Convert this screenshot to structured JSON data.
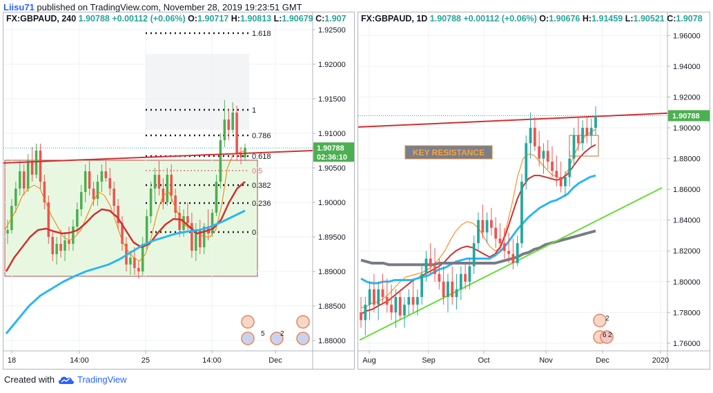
{
  "header": {
    "user": "Liisu71",
    "text": " published on TradingView.com, November 28, 2019 19:23:51 GMT"
  },
  "footer": {
    "prefix": "Created with",
    "brand": "TradingView"
  },
  "colors": {
    "candle_up": "#26a69a",
    "candle_up_bright": "#4caf50",
    "candle_down": "#ef5350",
    "ema_fast": "#f57c00",
    "ema_mid": "#d32f2f",
    "ema_slow": "#29b6f6",
    "ema_long": "#787b86",
    "resistance": "#d32f2f",
    "support": "#66dd33",
    "price_tag": "#4caf50"
  },
  "left": {
    "symbol": "FX:GBPAUD, 240",
    "last": "1.90788",
    "change": "+0.00112 (+0.06%)",
    "o_label": "O:",
    "o": "1.90717",
    "h_label": "H:",
    "h": "1.90813",
    "l_label": "L:",
    "l": "1.90679",
    "c_label": "C:",
    "c": "1.907",
    "countdown": "02:36:10",
    "fib_labels": [
      "1.618",
      "1",
      "0.786",
      "0.618",
      "0.5",
      "0.382",
      "0.236",
      "0"
    ],
    "x_labels": [
      "18",
      "14:00",
      "25",
      "14:00",
      "Dec"
    ],
    "event_counts": [
      "5",
      "2"
    ]
  },
  "right": {
    "symbol": "FX:GBPAUD, 1D",
    "last": "1.90788",
    "change": "+0.00112 (+0.06%)",
    "o_label": "O:",
    "o": "1.90676",
    "h_label": "H:",
    "h": "1.91459",
    "l_label": "L:",
    "l": "1.90521",
    "c_label": "C:",
    "c": "1.9078",
    "annotation": "KEY RESISTANCE",
    "x_labels": [
      "Aug",
      "Sep",
      "Oct",
      "Nov",
      "Dec",
      "2020"
    ],
    "event_counts": [
      "2",
      "6",
      "2"
    ]
  },
  "chart_data": [
    {
      "type": "candlestick",
      "symbol": "FX:GBPAUD",
      "interval": "240",
      "ylim": [
        1.8785,
        1.9275
      ],
      "y_ticks": [
        "1.92500",
        "1.92000",
        "1.91500",
        "1.91000",
        "1.90500",
        "1.90000",
        "1.89500",
        "1.89000",
        "1.88500",
        "1.88000"
      ],
      "x_ticks": [
        "18",
        "14:00",
        "25",
        "14:00",
        "Dec"
      ],
      "last_price": 1.90788,
      "fibonacci": {
        "levels": [
          1.618,
          1,
          0.786,
          0.618,
          0.5,
          0.382,
          0.236,
          0
        ],
        "prices": [
          1.9245,
          1.9134,
          1.9097,
          1.9067,
          1.9046,
          1.9025,
          1.8999,
          1.8957
        ]
      },
      "resistance_line": {
        "start": 1.9057,
        "end": 1.9075
      },
      "ohlc": [
        [
          1.8955,
          1.8975,
          1.894,
          1.896
        ],
        [
          1.896,
          1.9005,
          1.8955,
          1.8995
        ],
        [
          1.8995,
          1.903,
          1.8985,
          1.902
        ],
        [
          1.902,
          1.906,
          1.901,
          1.9045
        ],
        [
          1.9045,
          1.9055,
          1.901,
          1.902
        ],
        [
          1.902,
          1.907,
          1.9015,
          1.906
        ],
        [
          1.906,
          1.908,
          1.903,
          1.904
        ],
        [
          1.904,
          1.9085,
          1.9035,
          1.9075
        ],
        [
          1.9075,
          1.9085,
          1.902,
          1.903
        ],
        [
          1.903,
          1.904,
          1.899,
          1.9
        ],
        [
          1.9,
          1.901,
          1.894,
          1.895
        ],
        [
          1.895,
          1.896,
          1.8915,
          1.8925
        ],
        [
          1.8925,
          1.895,
          1.891,
          1.894
        ],
        [
          1.894,
          1.896,
          1.892,
          1.893
        ],
        [
          1.893,
          1.8955,
          1.8915,
          1.8945
        ],
        [
          1.8945,
          1.8965,
          1.893,
          1.894
        ],
        [
          1.894,
          1.8975,
          1.893,
          1.8965
        ],
        [
          1.8965,
          1.9,
          1.8955,
          1.899
        ],
        [
          1.899,
          1.9025,
          1.898,
          1.9015
        ],
        [
          1.9015,
          1.9055,
          1.9,
          1.9045
        ],
        [
          1.9045,
          1.906,
          1.901,
          1.902
        ],
        [
          1.902,
          1.903,
          1.8995,
          1.9005
        ],
        [
          1.9005,
          1.904,
          1.8995,
          1.903
        ],
        [
          1.903,
          1.9055,
          1.9015,
          1.9045
        ],
        [
          1.9045,
          1.906,
          1.903,
          1.9035
        ],
        [
          1.9035,
          1.905,
          1.901,
          1.902
        ],
        [
          1.902,
          1.903,
          1.8985,
          1.8995
        ],
        [
          1.8995,
          1.9005,
          1.896,
          1.897
        ],
        [
          1.897,
          1.898,
          1.893,
          1.894
        ],
        [
          1.894,
          1.895,
          1.89,
          1.891
        ],
        [
          1.891,
          1.893,
          1.8895,
          1.892
        ],
        [
          1.892,
          1.8935,
          1.8895,
          1.8905
        ],
        [
          1.8905,
          1.8915,
          1.889,
          1.89
        ],
        [
          1.89,
          1.895,
          1.8895,
          1.894
        ],
        [
          1.894,
          1.899,
          1.893,
          1.898
        ],
        [
          1.898,
          1.903,
          1.897,
          1.902
        ],
        [
          1.902,
          1.905,
          1.9,
          1.904
        ],
        [
          1.904,
          1.906,
          1.901,
          1.902
        ],
        [
          1.902,
          1.9035,
          1.899,
          1.9
        ],
        [
          1.9,
          1.905,
          1.8995,
          1.904
        ],
        [
          1.904,
          1.9055,
          1.9,
          1.901
        ],
        [
          1.901,
          1.902,
          1.8975,
          1.8985
        ],
        [
          1.8985,
          1.8995,
          1.895,
          1.896
        ],
        [
          1.896,
          1.899,
          1.895,
          1.898
        ],
        [
          1.898,
          1.9,
          1.896,
          1.897
        ],
        [
          1.897,
          1.8985,
          1.892,
          1.893
        ],
        [
          1.893,
          1.897,
          1.8915,
          1.896
        ],
        [
          1.896,
          1.8975,
          1.8925,
          1.8935
        ],
        [
          1.8935,
          1.897,
          1.8925,
          1.8965
        ],
        [
          1.8965,
          1.899,
          1.8945,
          1.8955
        ],
        [
          1.8955,
          1.899,
          1.895,
          1.8985
        ],
        [
          1.8985,
          1.904,
          1.898,
          1.903
        ],
        [
          1.903,
          1.91,
          1.902,
          1.909
        ],
        [
          1.909,
          1.9148,
          1.908,
          1.912
        ],
        [
          1.912,
          1.9135,
          1.909,
          1.9105
        ],
        [
          1.9105,
          1.9145,
          1.91,
          1.913
        ],
        [
          1.913,
          1.914,
          1.906,
          1.907
        ],
        [
          1.907,
          1.908,
          1.9055,
          1.9065
        ],
        [
          1.9065,
          1.9085,
          1.906,
          1.9079
        ]
      ],
      "series": [
        {
          "name": "EMA fast",
          "values": [
            1.896,
            1.8975,
            1.899,
            1.901,
            1.902,
            1.9025,
            1.902,
            1.9,
            1.898,
            1.8965,
            1.895,
            1.8945,
            1.895,
            1.896,
            1.898,
            1.9,
            1.9015,
            1.901,
            1.8995,
            1.897,
            1.8945,
            1.893,
            1.892,
            1.8915,
            1.8925,
            1.895,
            1.8985,
            1.901,
            1.9015,
            1.8995,
            1.8975,
            1.8965,
            1.896,
            1.8955,
            1.895,
            1.895,
            1.896,
            1.8995,
            1.905,
            1.907,
            1.9072,
            1.9075
          ]
        },
        {
          "name": "EMA mid",
          "values": [
            1.89,
            1.892,
            1.8935,
            1.895,
            1.896,
            1.8962,
            1.8958,
            1.8955,
            1.8956,
            1.896,
            1.897,
            1.8982,
            1.899,
            1.8988,
            1.8978,
            1.896,
            1.8942,
            1.8935,
            1.894,
            1.8955,
            1.8968,
            1.8976,
            1.8975,
            1.8965,
            1.8955,
            1.8958,
            1.8962,
            1.8975,
            1.9,
            1.902,
            1.903
          ]
        },
        {
          "name": "EMA slow",
          "values": [
            1.881,
            1.883,
            1.885,
            1.8865,
            1.8875,
            1.8885,
            1.8893,
            1.89,
            1.8905,
            1.891,
            1.8918,
            1.8928,
            1.8938,
            1.8945,
            1.895,
            1.8955,
            1.8958,
            1.896,
            1.8965,
            1.8972,
            1.898,
            1.8988
          ]
        }
      ]
    },
    {
      "type": "candlestick",
      "symbol": "FX:GBPAUD",
      "interval": "1D",
      "ylim": [
        1.755,
        1.975
      ],
      "y_ticks": [
        "1.96000",
        "1.94000",
        "1.92000",
        "1.90000",
        "1.88000",
        "1.86000",
        "1.84000",
        "1.82000",
        "1.80000",
        "1.78000",
        "1.76000"
      ],
      "x_ticks": [
        "Aug",
        "Sep",
        "Oct",
        "Nov",
        "Dec",
        "2020"
      ],
      "last_price": 1.90788,
      "resistance_line": {
        "start": 1.9005,
        "end": 1.9095
      },
      "support_line": {
        "start": 1.762,
        "end": 1.861
      },
      "ohlc": [
        [
          1.78,
          1.79,
          1.77,
          1.775
        ],
        [
          1.775,
          1.79,
          1.765,
          1.785
        ],
        [
          1.785,
          1.8,
          1.775,
          1.795
        ],
        [
          1.795,
          1.805,
          1.78,
          1.785
        ],
        [
          1.785,
          1.8,
          1.775,
          1.795
        ],
        [
          1.795,
          1.805,
          1.785,
          1.79
        ],
        [
          1.79,
          1.802,
          1.78,
          1.785
        ],
        [
          1.785,
          1.798,
          1.775,
          1.78
        ],
        [
          1.78,
          1.795,
          1.77,
          1.79
        ],
        [
          1.79,
          1.795,
          1.775,
          1.778
        ],
        [
          1.778,
          1.79,
          1.77,
          1.785
        ],
        [
          1.785,
          1.795,
          1.778,
          1.79
        ],
        [
          1.79,
          1.8,
          1.78,
          1.785
        ],
        [
          1.785,
          1.795,
          1.778,
          1.79
        ],
        [
          1.79,
          1.81,
          1.785,
          1.805
        ],
        [
          1.805,
          1.82,
          1.8,
          1.815
        ],
        [
          1.815,
          1.825,
          1.805,
          1.81
        ],
        [
          1.81,
          1.822,
          1.8,
          1.805
        ],
        [
          1.805,
          1.815,
          1.795,
          1.8
        ],
        [
          1.8,
          1.81,
          1.785,
          1.79
        ],
        [
          1.79,
          1.805,
          1.78,
          1.8
        ],
        [
          1.8,
          1.81,
          1.785,
          1.79
        ],
        [
          1.79,
          1.805,
          1.782,
          1.795
        ],
        [
          1.795,
          1.81,
          1.788,
          1.805
        ],
        [
          1.805,
          1.812,
          1.795,
          1.8
        ],
        [
          1.8,
          1.815,
          1.795,
          1.81
        ],
        [
          1.81,
          1.83,
          1.805,
          1.825
        ],
        [
          1.825,
          1.845,
          1.82,
          1.84
        ],
        [
          1.84,
          1.85,
          1.828,
          1.832
        ],
        [
          1.832,
          1.845,
          1.825,
          1.84
        ],
        [
          1.84,
          1.848,
          1.83,
          1.835
        ],
        [
          1.835,
          1.842,
          1.822,
          1.828
        ],
        [
          1.828,
          1.838,
          1.82,
          1.825
        ],
        [
          1.825,
          1.835,
          1.815,
          1.82
        ],
        [
          1.82,
          1.832,
          1.812,
          1.818
        ],
        [
          1.818,
          1.828,
          1.808,
          1.812
        ],
        [
          1.812,
          1.83,
          1.81,
          1.825
        ],
        [
          1.825,
          1.87,
          1.822,
          1.865
        ],
        [
          1.865,
          1.895,
          1.86,
          1.89
        ],
        [
          1.89,
          1.91,
          1.88,
          1.9
        ],
        [
          1.9,
          1.907,
          1.885,
          1.888
        ],
        [
          1.888,
          1.898,
          1.875,
          1.88
        ],
        [
          1.88,
          1.89,
          1.87,
          1.885
        ],
        [
          1.885,
          1.892,
          1.873,
          1.878
        ],
        [
          1.878,
          1.888,
          1.868,
          1.872
        ],
        [
          1.872,
          1.882,
          1.862,
          1.868
        ],
        [
          1.868,
          1.878,
          1.858,
          1.862
        ],
        [
          1.862,
          1.872,
          1.855,
          1.868
        ],
        [
          1.868,
          1.885,
          1.862,
          1.88
        ],
        [
          1.88,
          1.9,
          1.875,
          1.895
        ],
        [
          1.895,
          1.907,
          1.885,
          1.89
        ],
        [
          1.89,
          1.905,
          1.885,
          1.9
        ],
        [
          1.9,
          1.907,
          1.89,
          1.895
        ],
        [
          1.895,
          1.906,
          1.888,
          1.9
        ],
        [
          1.9,
          1.914,
          1.895,
          1.9079
        ]
      ],
      "series": [
        {
          "name": "EMA fast",
          "values": [
            1.783,
            1.784,
            1.786,
            1.787,
            1.789,
            1.792,
            1.796,
            1.8,
            1.803,
            1.804,
            1.805,
            1.806,
            1.808,
            1.811,
            1.815,
            1.82,
            1.827,
            1.833,
            1.837,
            1.839,
            1.838,
            1.835,
            1.829,
            1.823,
            1.82,
            1.822,
            1.835,
            1.85,
            1.868,
            1.88,
            1.883,
            1.882,
            1.878,
            1.874,
            1.87,
            1.868,
            1.867,
            1.872,
            1.881,
            1.889,
            1.894,
            1.897,
            1.899
          ]
        },
        {
          "name": "EMA mid",
          "values": [
            1.779,
            1.781,
            1.782,
            1.784,
            1.786,
            1.788,
            1.791,
            1.794,
            1.797,
            1.8,
            1.802,
            1.804,
            1.806,
            1.808,
            1.81,
            1.813,
            1.817,
            1.82,
            1.822,
            1.823,
            1.822,
            1.82,
            1.818,
            1.816,
            1.818,
            1.823,
            1.832,
            1.843,
            1.854,
            1.862,
            1.867,
            1.869,
            1.869,
            1.868,
            1.867,
            1.866,
            1.867,
            1.87,
            1.875,
            1.88,
            1.884,
            1.887,
            1.889
          ]
        },
        {
          "name": "EMA slow",
          "values": [
            1.802,
            1.8,
            1.799,
            1.799,
            1.8,
            1.8,
            1.801,
            1.801,
            1.801,
            1.801,
            1.802,
            1.803,
            1.804,
            1.806,
            1.808,
            1.809,
            1.811,
            1.813,
            1.814,
            1.815,
            1.815,
            1.815,
            1.815,
            1.815,
            1.817,
            1.82,
            1.824,
            1.829,
            1.834,
            1.838,
            1.842,
            1.845,
            1.848,
            1.85,
            1.852,
            1.853,
            1.855,
            1.857,
            1.861,
            1.864,
            1.866,
            1.868,
            1.869
          ]
        },
        {
          "name": "EMA long",
          "values": [
            1.814,
            1.813,
            1.812,
            1.812,
            1.812,
            1.811,
            1.811,
            1.811,
            1.811,
            1.811,
            1.811,
            1.811,
            1.811,
            1.811,
            1.812,
            1.812,
            1.812,
            1.812,
            1.812,
            1.812,
            1.812,
            1.812,
            1.812,
            1.812,
            1.812,
            1.813,
            1.814,
            1.815,
            1.816,
            1.818,
            1.819,
            1.821,
            1.822,
            1.824,
            1.825,
            1.826,
            1.827,
            1.828,
            1.829,
            1.83,
            1.831,
            1.832,
            1.833
          ]
        }
      ]
    }
  ]
}
